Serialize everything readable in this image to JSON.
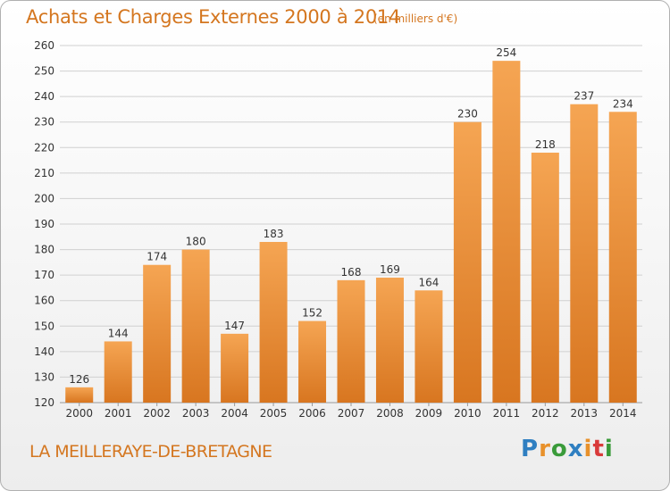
{
  "title": "Achats et Charges Externes 2000 à 2014",
  "subtitle": "(en milliers d'€)",
  "footer_place": "LA MEILLERAYE-DE-BRETAGNE",
  "logo": {
    "text": "Proxiti",
    "letters": [
      "P",
      "r",
      "o",
      "x",
      "i",
      "t",
      "i"
    ],
    "colors": [
      "#2f7fc1",
      "#e8912b",
      "#3a9b3a",
      "#2f7fc1",
      "#e8912b",
      "#d93a3a",
      "#3a9b3a"
    ]
  },
  "colors": {
    "accent": "#d4761f",
    "bar_top": "#f5a553",
    "bar_bottom": "#d87620",
    "grid": "#d0d0d0",
    "axis_text": "#333333"
  },
  "chart_data": {
    "type": "bar",
    "title": "Achats et Charges Externes 2000 à 2014",
    "subtitle": "(en milliers d'€)",
    "xlabel": "",
    "ylabel": "",
    "categories": [
      "2000",
      "2001",
      "2002",
      "2003",
      "2004",
      "2005",
      "2006",
      "2007",
      "2008",
      "2009",
      "2010",
      "2011",
      "2012",
      "2013",
      "2014"
    ],
    "values": [
      126,
      144,
      174,
      180,
      147,
      183,
      152,
      168,
      169,
      164,
      230,
      254,
      218,
      237,
      234
    ],
    "ylim": [
      120,
      260
    ],
    "yticks": [
      120,
      130,
      140,
      150,
      160,
      170,
      180,
      190,
      200,
      210,
      220,
      230,
      240,
      250,
      260
    ],
    "grid": true,
    "legend": "none"
  }
}
